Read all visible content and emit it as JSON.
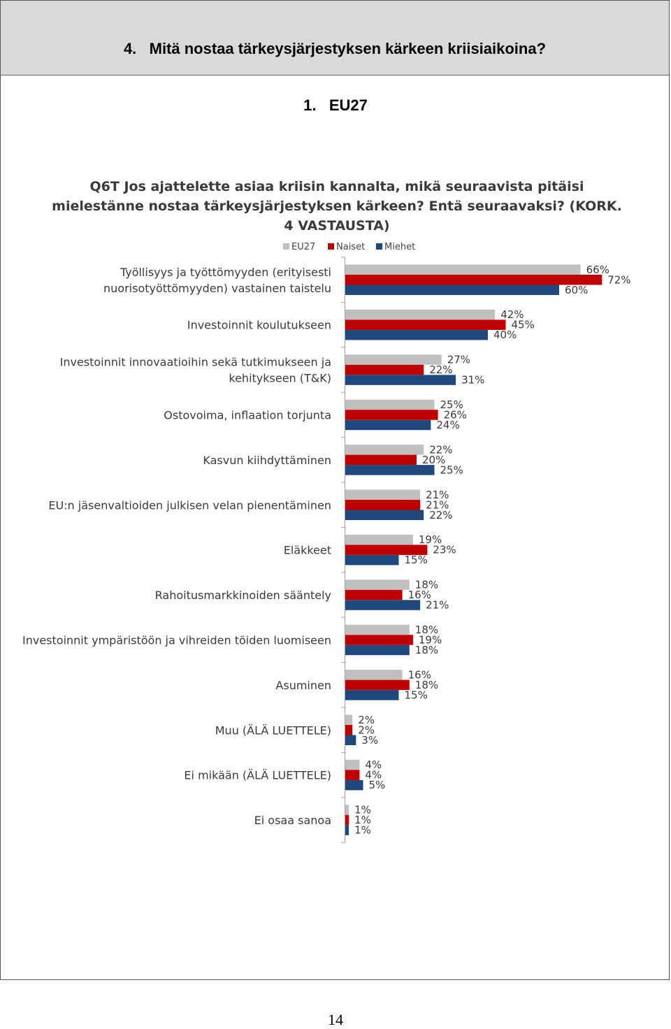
{
  "page": {
    "header_title": "4.   Mitä nostaa tärkeysjärjestyksen kärkeen kriisiaikoina?",
    "subtitle": "1.   EU27",
    "page_number": "14"
  },
  "chart_data": {
    "type": "bar",
    "orientation": "horizontal",
    "title_lines": [
      "Q6T Jos ajattelette asiaa kriisin kannalta, mikä seuraavista pitäisi",
      "mielestänne nostaa tärkeysjärjestyksen kärkeen? Entä seuraavaksi? (KORK.",
      "4 VASTAUSTA)"
    ],
    "legend_placement": "top",
    "grid": false,
    "xlim": [
      0,
      100
    ],
    "unit": "%",
    "categories": [
      [
        "Työllisyys ja työttömyyden (erityisesti",
        "nuorisotyöttömyyden) vastainen taistelu"
      ],
      [
        "Investoinnit koulutukseen"
      ],
      [
        "Investoinnit innovaatioihin sekä tutkimukseen ja",
        "kehitykseen (T&K)"
      ],
      [
        "Ostovoima, inflaation torjunta"
      ],
      [
        "Kasvun kiihdyttäminen"
      ],
      [
        "EU:n jäsenvaltioiden julkisen velan pienentäminen"
      ],
      [
        "Eläkkeet"
      ],
      [
        "Rahoitusmarkkinoiden sääntely"
      ],
      [
        "Investoinnit ympäristöön ja vihreiden töiden luomiseen"
      ],
      [
        "Asuminen"
      ],
      [
        "Muu (ÄLÄ LUETTELE)"
      ],
      [
        "Ei mikään (ÄLÄ LUETTELE)"
      ],
      [
        "Ei osaa sanoa"
      ]
    ],
    "series": [
      {
        "name": "EU27",
        "color": "#c0c0c0",
        "values": [
          66,
          42,
          27,
          25,
          22,
          21,
          19,
          18,
          18,
          16,
          2,
          4,
          1
        ]
      },
      {
        "name": "Naiset",
        "color": "#c00000",
        "values": [
          72,
          45,
          22,
          26,
          20,
          21,
          23,
          16,
          19,
          18,
          2,
          4,
          1
        ]
      },
      {
        "name": "Miehet",
        "color": "#1f497d",
        "values": [
          60,
          40,
          31,
          24,
          25,
          22,
          15,
          21,
          18,
          15,
          3,
          5,
          1
        ]
      }
    ]
  }
}
